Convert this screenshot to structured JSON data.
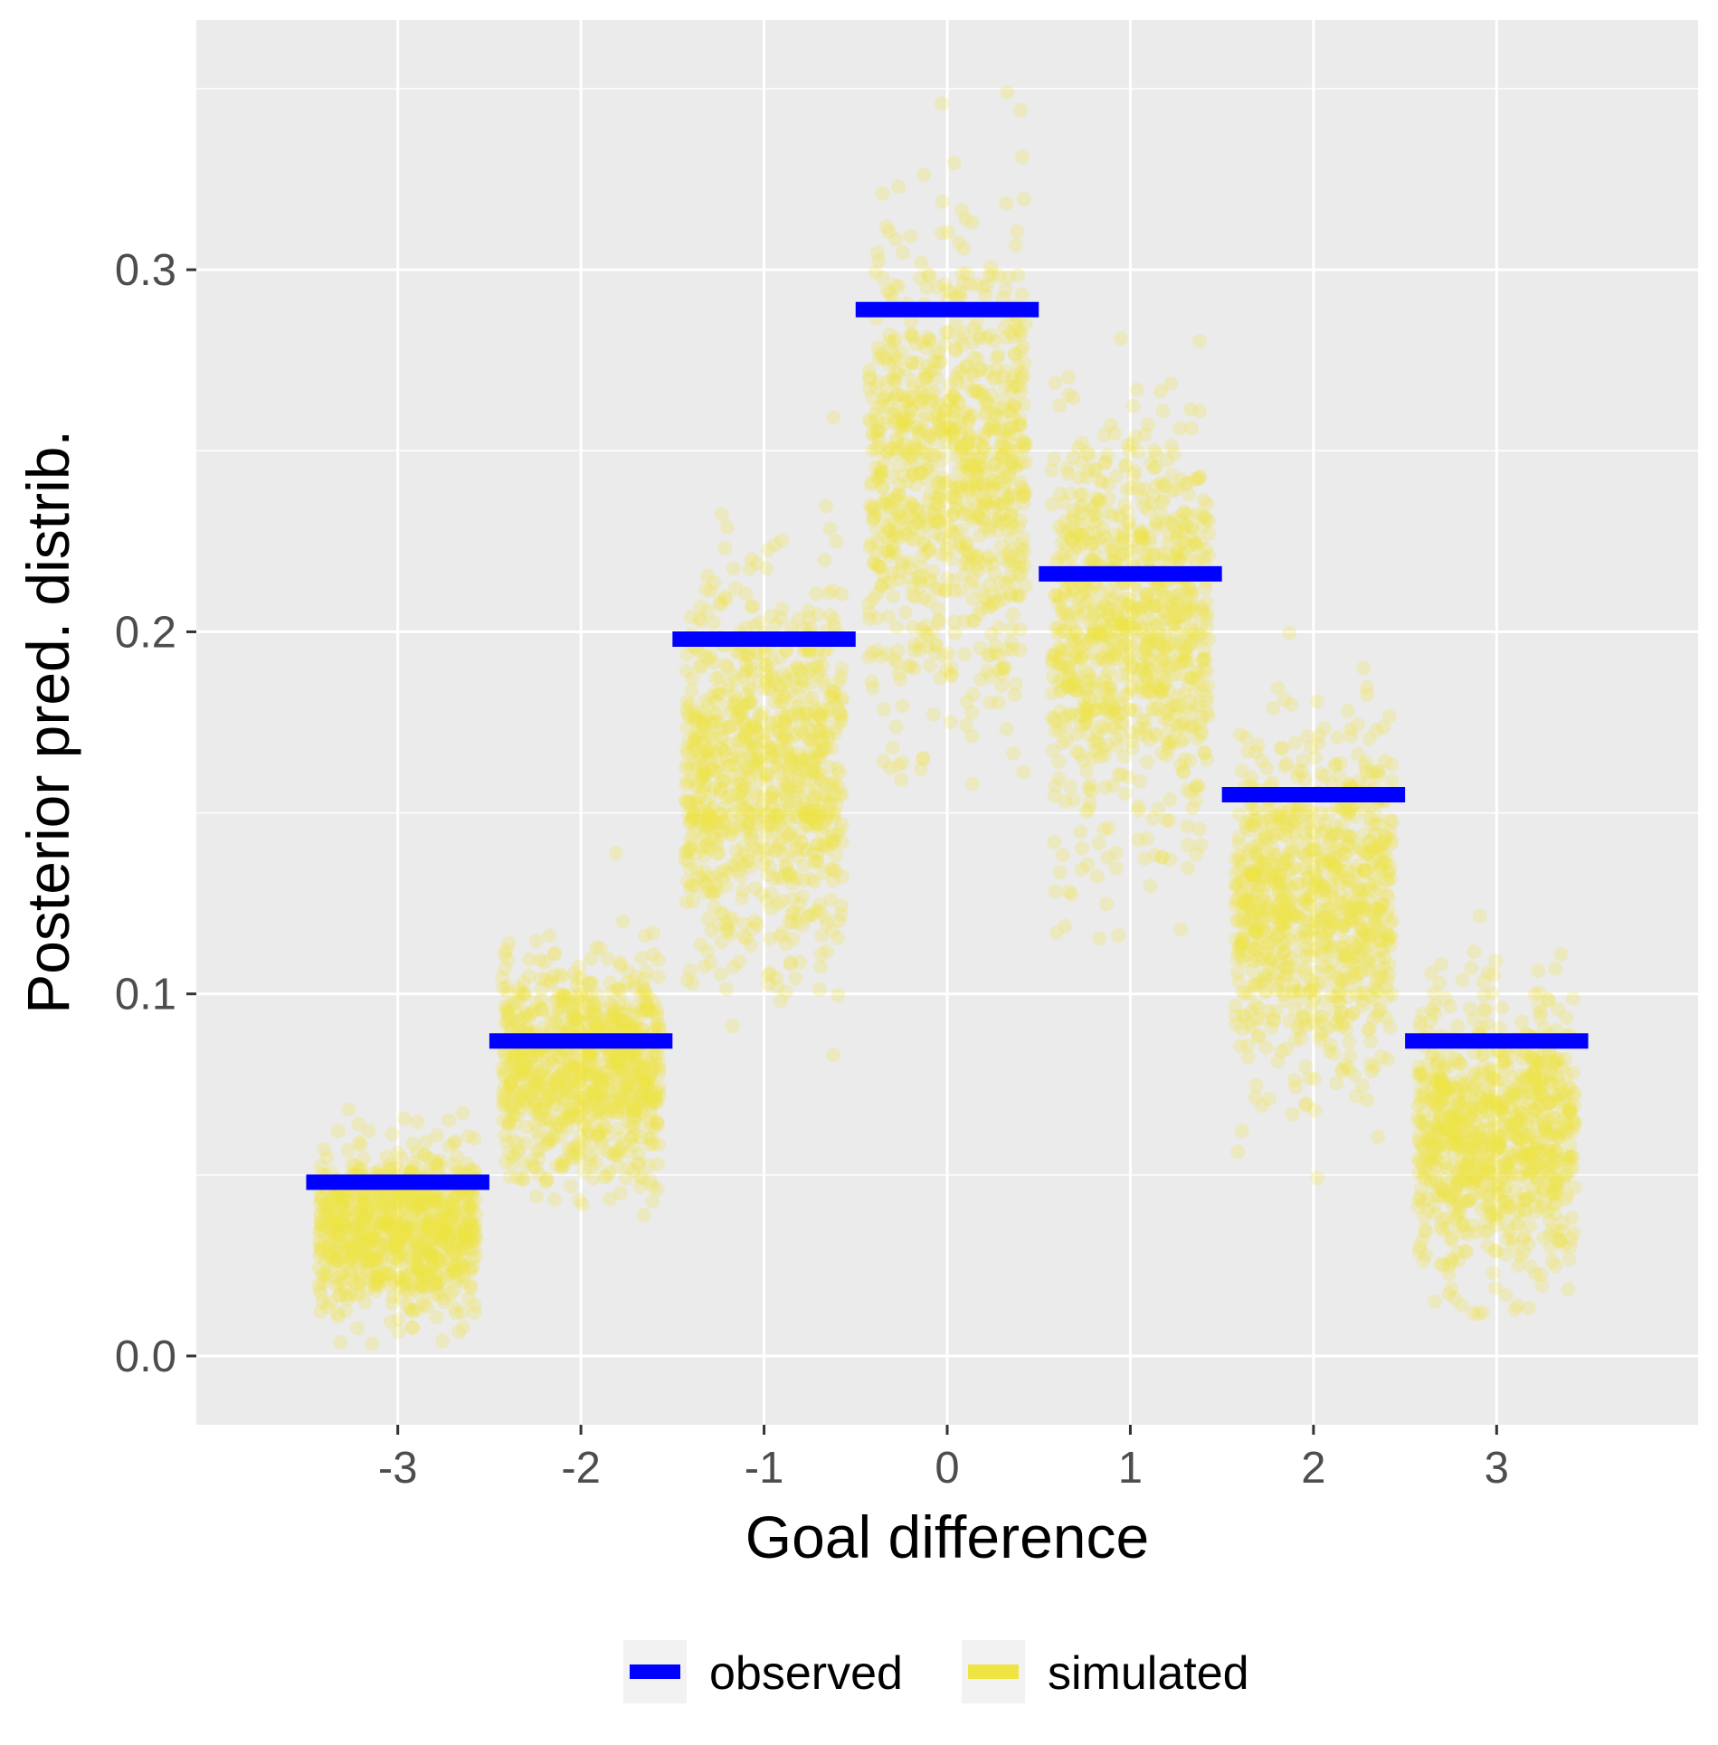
{
  "chart_data": {
    "type": "scatter",
    "xlabel": "Goal difference",
    "ylabel": "Posterior pred. distrib.",
    "x": [
      -3,
      -2,
      -1,
      0,
      1,
      2,
      3
    ],
    "x_tick_labels": [
      "-3",
      "-2",
      "-1",
      "0",
      "1",
      "2",
      "3"
    ],
    "xlim": [
      -4.1,
      4.1
    ],
    "y_ticks": [
      0.0,
      0.1,
      0.2,
      0.3
    ],
    "y_tick_labels": [
      "0.0",
      "0.1",
      "0.2",
      "0.3"
    ],
    "ylim": [
      -0.019,
      0.369
    ],
    "grid": true,
    "legend_position": "bottom",
    "series": [
      {
        "name": "observed",
        "color": "#0000ff",
        "mark": "horizontal segment",
        "values": [
          0.048,
          0.087,
          0.198,
          0.289,
          0.216,
          0.155,
          0.087
        ]
      },
      {
        "name": "simulated",
        "color": "#f0e442",
        "mark": "jittered points",
        "center": [
          0.035,
          0.08,
          0.16,
          0.245,
          0.2,
          0.125,
          0.062
        ],
        "sd": [
          0.011,
          0.015,
          0.026,
          0.032,
          0.027,
          0.022,
          0.018
        ],
        "range": [
          [
            0.0,
            0.093
          ],
          [
            0.029,
            0.16
          ],
          [
            0.075,
            0.261
          ],
          [
            0.155,
            0.352
          ],
          [
            0.115,
            0.313
          ],
          [
            0.047,
            0.219
          ],
          [
            0.009,
            0.151
          ]
        ]
      }
    ]
  }
}
